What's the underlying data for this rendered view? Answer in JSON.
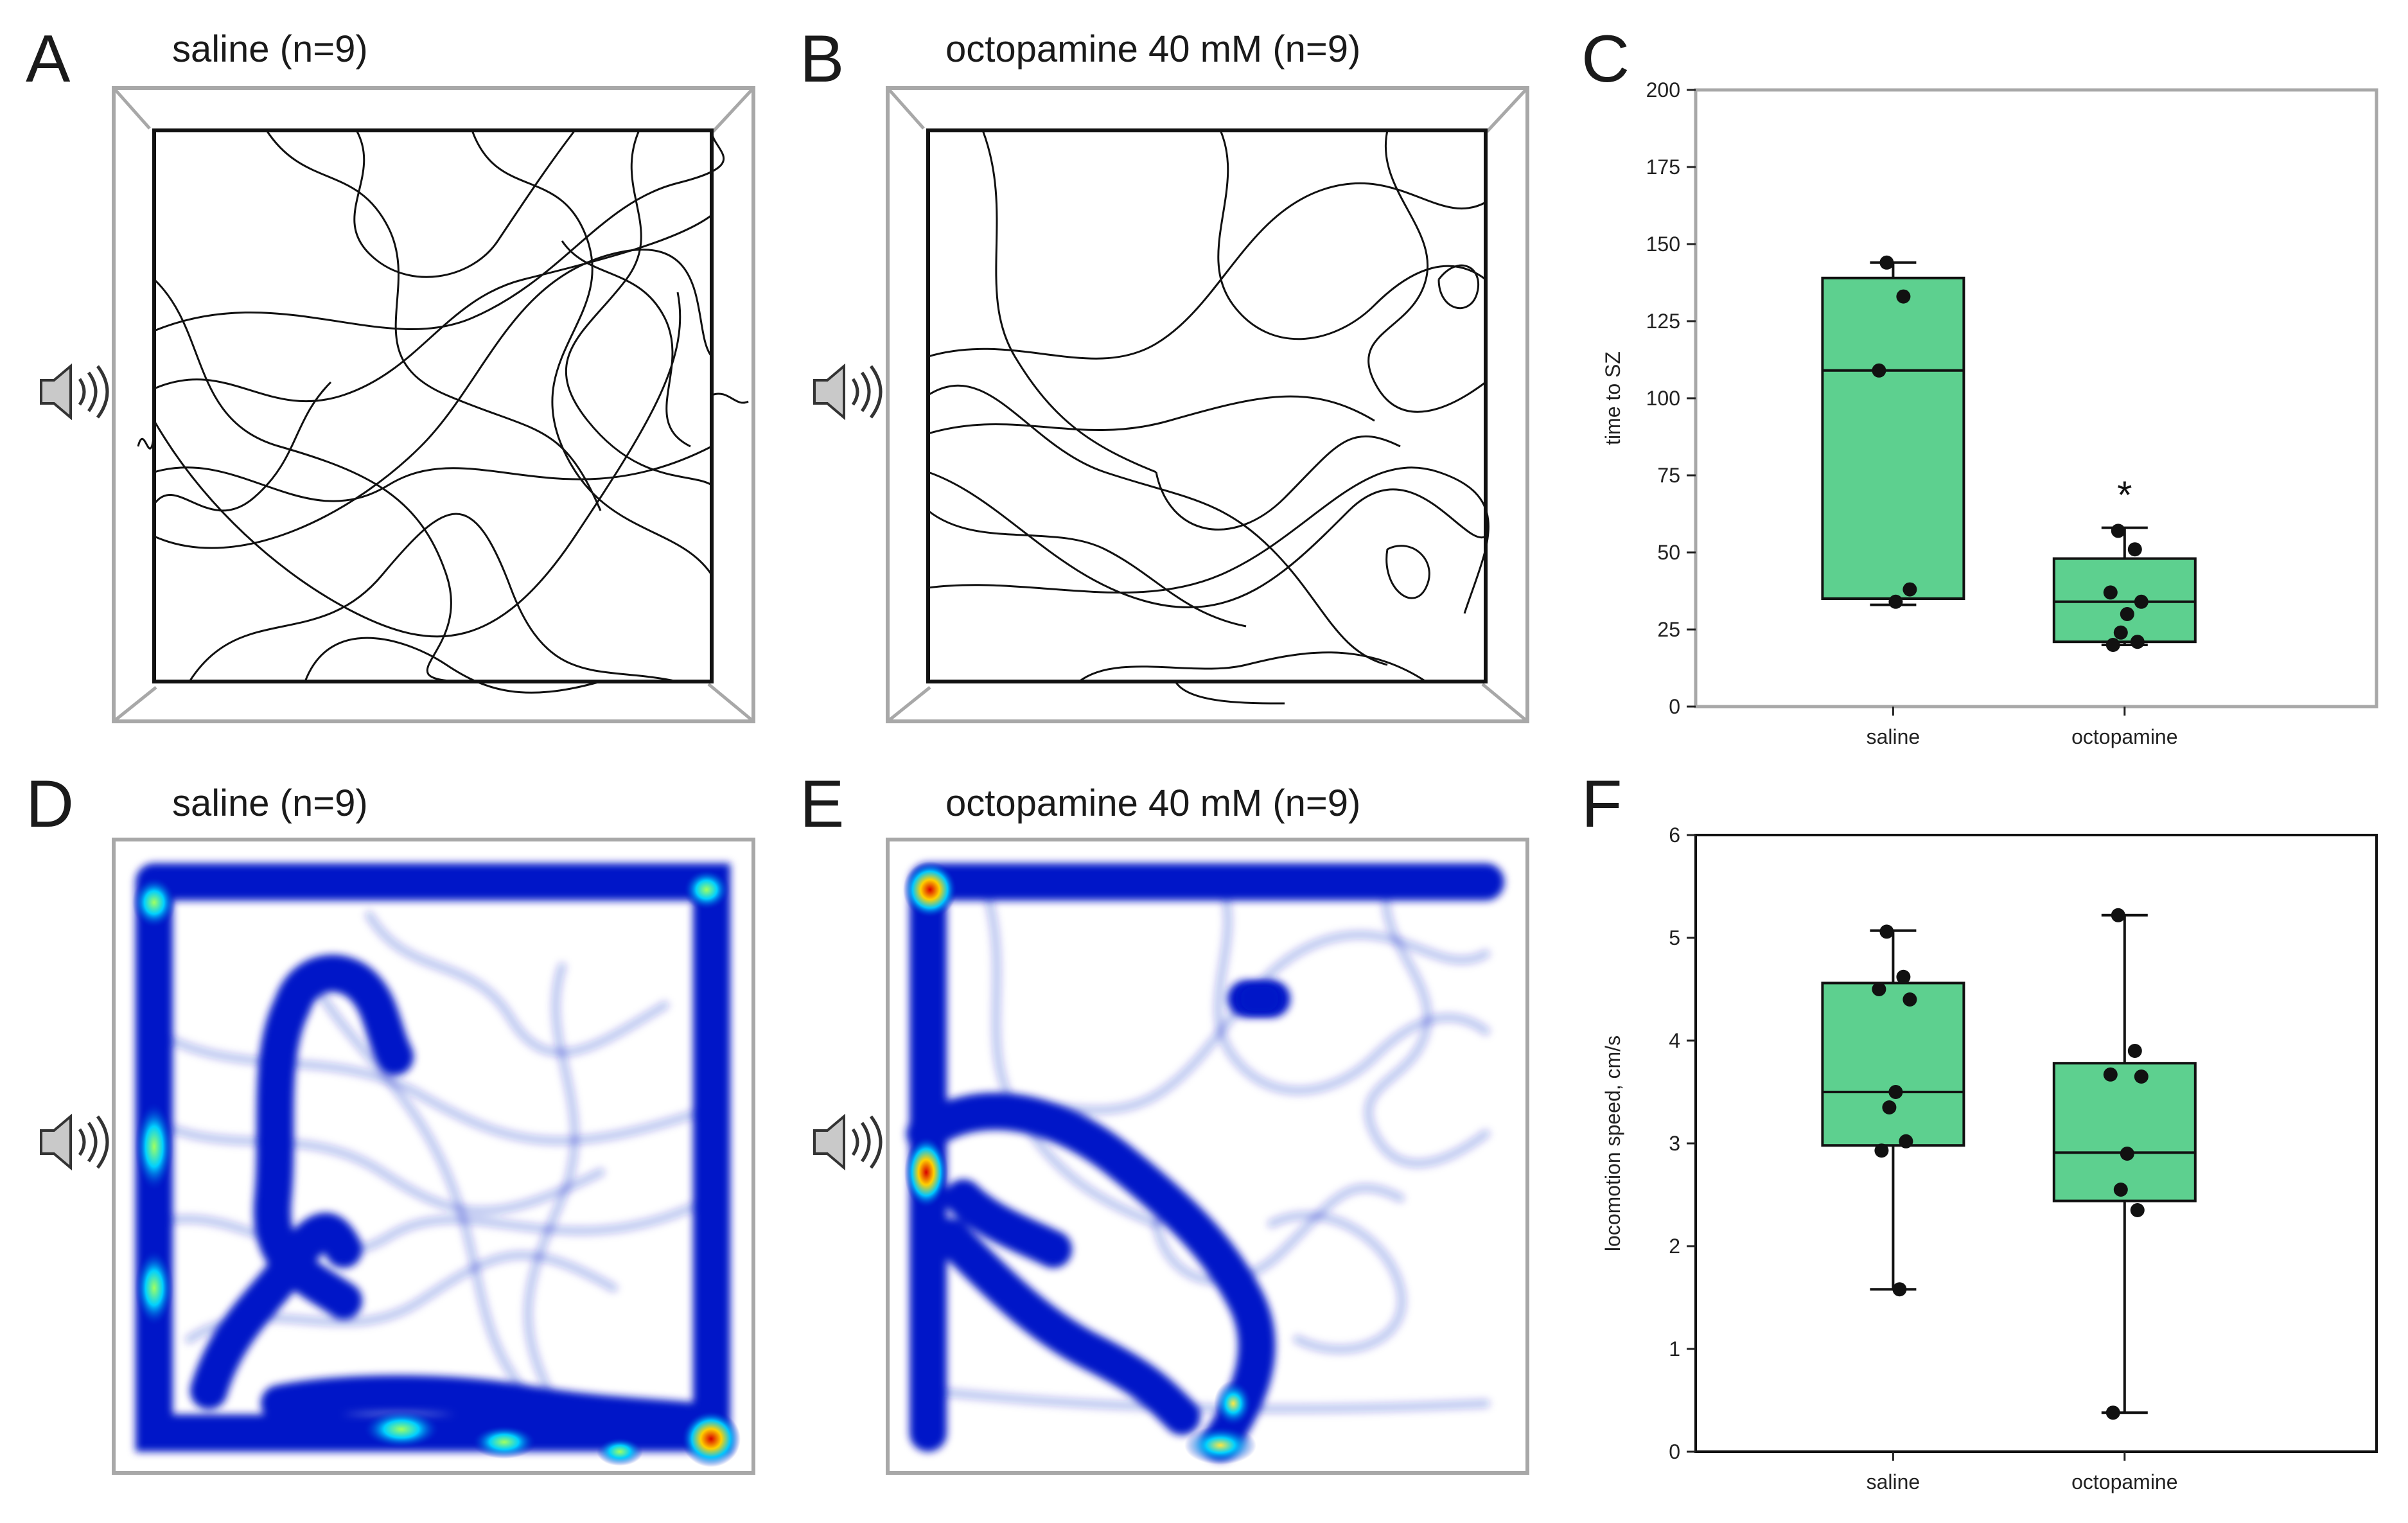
{
  "panels": {
    "A": {
      "letter": "A",
      "title": "saline (n=9)"
    },
    "B": {
      "letter": "B",
      "title": "octopamine 40 mM (n=9)"
    },
    "C": {
      "letter": "C"
    },
    "D": {
      "letter": "D",
      "title": "saline (n=9)"
    },
    "E": {
      "letter": "E",
      "title": "octopamine 40 mM (n=9)"
    },
    "F": {
      "letter": "F"
    }
  },
  "icons": {
    "sound_source": "speaker-icon"
  },
  "colors": {
    "box_fill": "#5dd08f",
    "frame_gray": "#a8a8a8",
    "heat_blue": "#0018c8",
    "heat_red": "#d80000"
  },
  "chart_data": [
    {
      "id": "C",
      "type": "box",
      "ylabel": "time to SZ",
      "xlabel": "",
      "ylim": [
        0,
        200
      ],
      "yticks": [
        0,
        25,
        50,
        75,
        100,
        125,
        150,
        175,
        200
      ],
      "categories": [
        "saline",
        "octopamine"
      ],
      "boxes": [
        {
          "name": "saline",
          "whisker_low": 33,
          "q1": 35,
          "median": 109,
          "q3": 139,
          "whisker_high": 144,
          "points": [
            144,
            133,
            109,
            38,
            34
          ]
        },
        {
          "name": "octopamine",
          "whisker_low": 20,
          "q1": 21,
          "median": 34,
          "q3": 48,
          "whisker_high": 58,
          "points": [
            57,
            51,
            37,
            34,
            30,
            24,
            21,
            20
          ]
        }
      ],
      "annotations": [
        {
          "category": "octopamine",
          "text": "*",
          "y": 69
        }
      ]
    },
    {
      "id": "F",
      "type": "box",
      "ylabel": "locomotion speed, cm/s",
      "xlabel": "",
      "ylim": [
        0,
        6
      ],
      "yticks": [
        0,
        1,
        2,
        3,
        4,
        5,
        6
      ],
      "categories": [
        "saline",
        "octopamine"
      ],
      "boxes": [
        {
          "name": "saline",
          "whisker_low": 1.58,
          "q1": 2.98,
          "median": 3.5,
          "q3": 4.56,
          "whisker_high": 5.07,
          "points": [
            5.06,
            4.62,
            4.5,
            4.4,
            3.5,
            3.35,
            3.02,
            2.93,
            1.58
          ]
        },
        {
          "name": "octopamine",
          "whisker_low": 0.38,
          "q1": 2.44,
          "median": 2.91,
          "q3": 3.78,
          "whisker_high": 5.22,
          "points": [
            5.22,
            3.9,
            3.67,
            3.65,
            2.9,
            2.55,
            2.35,
            0.38
          ]
        }
      ],
      "annotations": []
    }
  ]
}
